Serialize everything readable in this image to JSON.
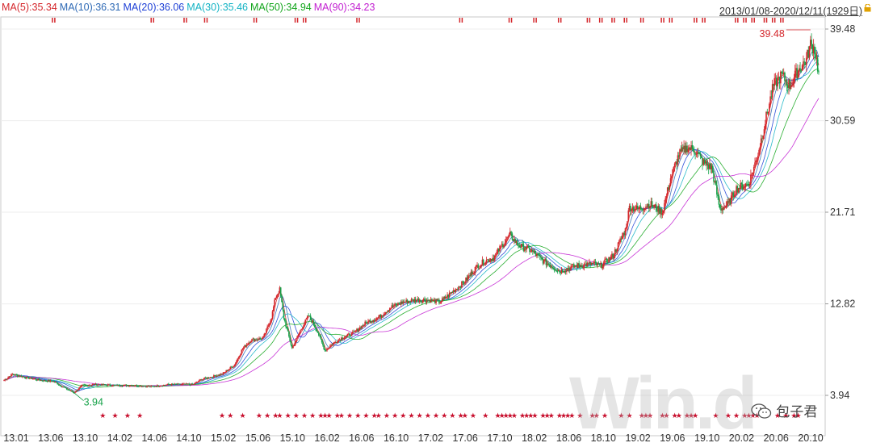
{
  "chart_data": {
    "type": "candlestick",
    "title": "",
    "date_range_label": "2013/01/08-2020/12/11(1929日)",
    "moving_averages": [
      {
        "label": "MA(5):35.34",
        "color": "#d4262b"
      },
      {
        "label": "MA(10):36.31",
        "color": "#2f6ab5"
      },
      {
        "label": "MA(20):36.06",
        "color": "#1d3fd6"
      },
      {
        "label": "MA(30):35.46",
        "color": "#13b3c4"
      },
      {
        "label": "MA(50):34.94",
        "color": "#12a51b"
      },
      {
        "label": "MA(90):34.23",
        "color": "#c21fd1"
      }
    ],
    "ylim": [
      3.94,
      39.48
    ],
    "y_ticks": [
      "39.48",
      "30.59",
      "21.71",
      "12.82",
      "3.94"
    ],
    "x_ticks": [
      "13.01",
      "13.06",
      "13.10",
      "14.02",
      "14.06",
      "14.10",
      "15.02",
      "15.06",
      "15.10",
      "16.02",
      "16.06",
      "16.10",
      "17.02",
      "17.06",
      "17.10",
      "18.02",
      "18.06",
      "18.10",
      "19.02",
      "19.06",
      "19.10",
      "20.02",
      "20.06",
      "20.10"
    ],
    "annotations": {
      "high": "39.48",
      "low": "3.94"
    },
    "price_path": [
      [
        0,
        5.4
      ],
      [
        2,
        6.0
      ],
      [
        5,
        5.7
      ],
      [
        9,
        5.4
      ],
      [
        12,
        5.3
      ],
      [
        15,
        4.6
      ],
      [
        17,
        4.2
      ],
      [
        19,
        4.9
      ],
      [
        22,
        5.0
      ],
      [
        27,
        4.9
      ],
      [
        31,
        4.9
      ],
      [
        36,
        4.8
      ],
      [
        40,
        5.0
      ],
      [
        46,
        5.0
      ],
      [
        48,
        5.5
      ],
      [
        53,
        6.0
      ],
      [
        56,
        6.9
      ],
      [
        58,
        8.5
      ],
      [
        60,
        9.3
      ],
      [
        63,
        9.5
      ],
      [
        65,
        11.5
      ],
      [
        66,
        13.5
      ],
      [
        67,
        14.2
      ],
      [
        68,
        11.5
      ],
      [
        70,
        8.5
      ],
      [
        72,
        10.2
      ],
      [
        74,
        11.7
      ],
      [
        76,
        10.3
      ],
      [
        78,
        8.3
      ],
      [
        80,
        9.0
      ],
      [
        82,
        9.5
      ],
      [
        85,
        10.0
      ],
      [
        88,
        11.0
      ],
      [
        91,
        11.5
      ],
      [
        94,
        12.5
      ],
      [
        97,
        13.0
      ],
      [
        100,
        13.2
      ],
      [
        103,
        13.2
      ],
      [
        106,
        13.0
      ],
      [
        109,
        14.0
      ],
      [
        112,
        15.0
      ],
      [
        115,
        16.5
      ],
      [
        117,
        17.0
      ],
      [
        119,
        17.3
      ],
      [
        121,
        18.5
      ],
      [
        123,
        19.5
      ],
      [
        125,
        18.5
      ],
      [
        128,
        18.0
      ],
      [
        131,
        17.0
      ],
      [
        135,
        16.0
      ],
      [
        139,
        16.5
      ],
      [
        143,
        16.7
      ],
      [
        145,
        16.5
      ],
      [
        148,
        17.5
      ],
      [
        151,
        20.0
      ],
      [
        152,
        22.2
      ],
      [
        154,
        22.0
      ],
      [
        157,
        22.5
      ],
      [
        160,
        21.7
      ],
      [
        162,
        25.0
      ],
      [
        164,
        27.3
      ],
      [
        166,
        28.0
      ],
      [
        168,
        27.7
      ],
      [
        170,
        26.5
      ],
      [
        172,
        26.0
      ],
      [
        174,
        22.0
      ],
      [
        176,
        22.5
      ],
      [
        178,
        24.0
      ],
      [
        181,
        24.5
      ],
      [
        183,
        27.0
      ],
      [
        185,
        30.5
      ],
      [
        187,
        34.0
      ],
      [
        189,
        35.0
      ],
      [
        191,
        34.0
      ],
      [
        193,
        35.5
      ],
      [
        195,
        36.5
      ],
      [
        196,
        38.0
      ],
      [
        197,
        37.5
      ],
      [
        198,
        35.3
      ]
    ],
    "event_markers_top": [
      12,
      36,
      44,
      49,
      61,
      71,
      73,
      86,
      111,
      123,
      129,
      135,
      142,
      145,
      148,
      151,
      155,
      160,
      162,
      168,
      170,
      178,
      180,
      182,
      185,
      187,
      189
    ],
    "event_markers_bottom": [
      24,
      27,
      30,
      33,
      53,
      55,
      58,
      62,
      64,
      66,
      67,
      69,
      71,
      73,
      75,
      77,
      78,
      79,
      81,
      82,
      84,
      86,
      88,
      90,
      91,
      93,
      95,
      97,
      99,
      101,
      103,
      105,
      107,
      109,
      111,
      112,
      114,
      117,
      120,
      121,
      122,
      123,
      124,
      126,
      127,
      128,
      129,
      131,
      132,
      133,
      135,
      136,
      137,
      138,
      140,
      143,
      144,
      146,
      150,
      152,
      155,
      156,
      157,
      160,
      161,
      163,
      164,
      166,
      167,
      168,
      173,
      176,
      178,
      180,
      181,
      182,
      183,
      185,
      188,
      190,
      192,
      193
    ]
  },
  "watermark": {
    "text": "Win.d"
  },
  "wechat_label": "包子君"
}
